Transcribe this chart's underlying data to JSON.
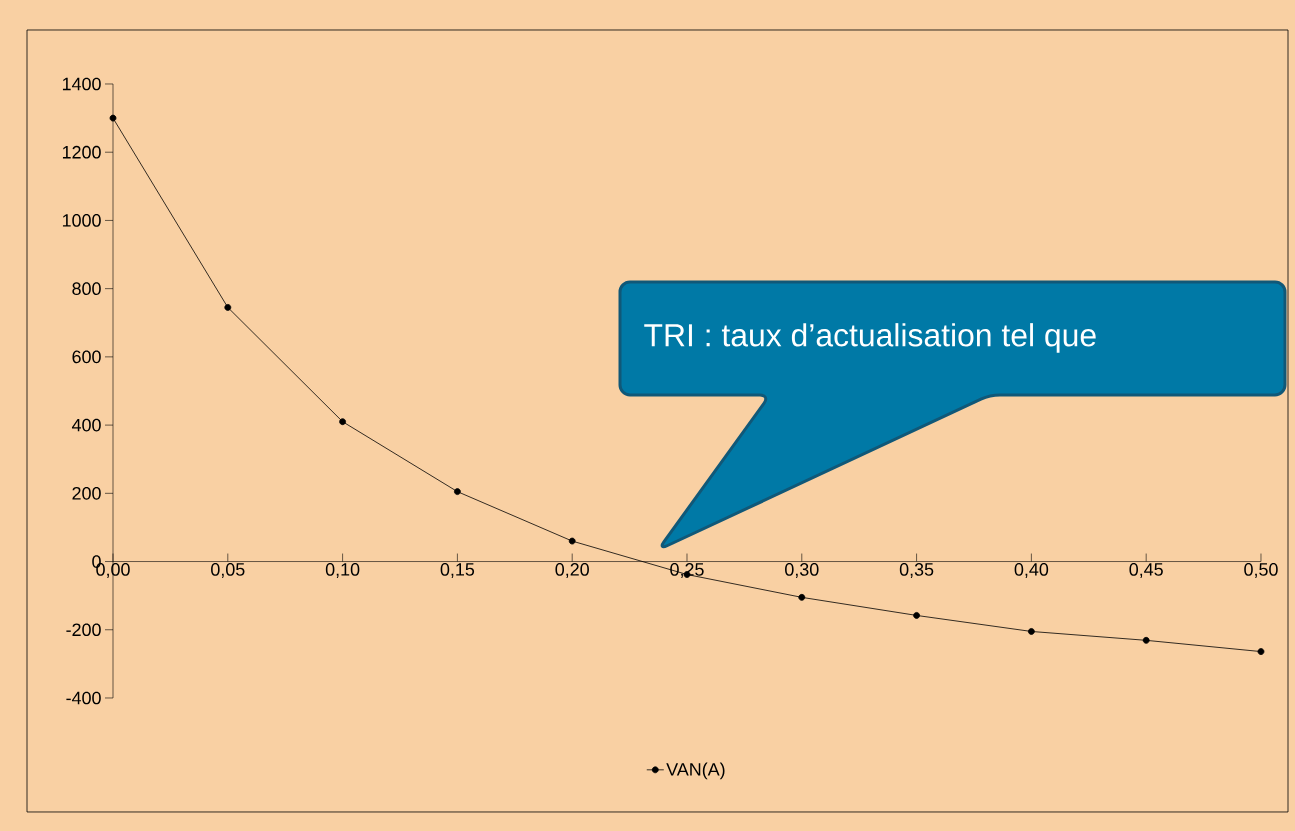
{
  "chart_data": {
    "type": "line",
    "x": [
      0,
      0.05,
      0.1,
      0.15,
      0.2,
      0.25,
      0.3,
      0.35,
      0.4,
      0.45,
      0.5
    ],
    "series": [
      {
        "name": "VAN(A)",
        "color": "#000000",
        "values": [
          1300,
          745,
          410,
          205,
          60,
          -38,
          -105,
          -158,
          -205,
          -231,
          -264
        ]
      }
    ],
    "xlim": [
      0,
      0.5
    ],
    "ylim": [
      -400,
      1400
    ],
    "xticks": [
      {
        "value": 0,
        "label": "0,00"
      },
      {
        "value": 0.05,
        "label": "0,05"
      },
      {
        "value": 0.1,
        "label": "0,10"
      },
      {
        "value": 0.15,
        "label": "0,15"
      },
      {
        "value": 0.2,
        "label": "0,20"
      },
      {
        "value": 0.25,
        "label": "0,25"
      },
      {
        "value": 0.3,
        "label": "0,30"
      },
      {
        "value": 0.35,
        "label": "0,35"
      },
      {
        "value": 0.4,
        "label": "0,40"
      },
      {
        "value": 0.45,
        "label": "0,45"
      },
      {
        "value": 0.5,
        "label": "0,50"
      }
    ],
    "yticks": [
      -400,
      -200,
      0,
      200,
      400,
      600,
      800,
      1000,
      1200,
      1400
    ],
    "annotations": [
      "TRI : taux d’actualisation tel que"
    ],
    "marker": "circle",
    "line_style": "solid",
    "legend": "bottom",
    "grid": false
  }
}
